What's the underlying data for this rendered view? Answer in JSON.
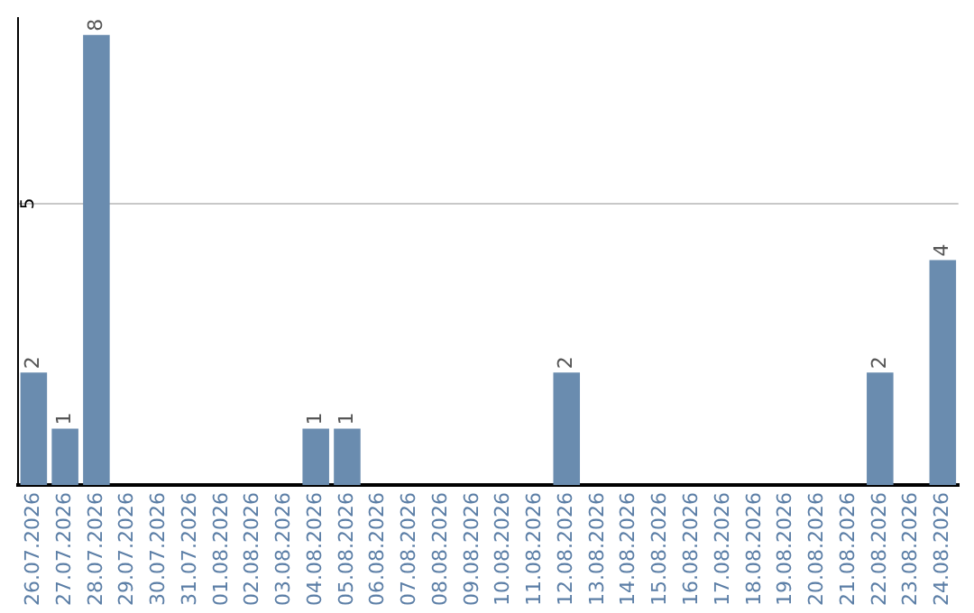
{
  "chart_data": {
    "type": "bar",
    "categories": [
      "26.07.2026",
      "27.07.2026",
      "28.07.2026",
      "29.07.2026",
      "30.07.2026",
      "31.07.2026",
      "01.08.2026",
      "02.08.2026",
      "03.08.2026",
      "04.08.2026",
      "05.08.2026",
      "06.08.2026",
      "07.08.2026",
      "08.08.2026",
      "09.08.2026",
      "10.08.2026",
      "11.08.2026",
      "12.08.2026",
      "13.08.2026",
      "14.08.2026",
      "15.08.2026",
      "16.08.2026",
      "17.08.2026",
      "18.08.2026",
      "19.08.2026",
      "20.08.2026",
      "21.08.2026",
      "22.08.2026",
      "23.08.2026",
      "24.08.2026"
    ],
    "values": [
      2,
      1,
      8,
      0,
      0,
      0,
      0,
      0,
      0,
      1,
      1,
      0,
      0,
      0,
      0,
      0,
      0,
      2,
      0,
      0,
      0,
      0,
      0,
      0,
      0,
      0,
      0,
      2,
      0,
      4
    ],
    "value_labels": [
      "2",
      "1",
      "8",
      null,
      null,
      null,
      null,
      null,
      null,
      "1",
      "1",
      null,
      null,
      null,
      null,
      null,
      null,
      "2",
      null,
      null,
      null,
      null,
      null,
      null,
      null,
      null,
      null,
      "2",
      null,
      "4"
    ],
    "color": "#6a8caf",
    "ylim": [
      0,
      8.3
    ],
    "yticks": [
      5
    ],
    "grid": "y",
    "legend": false
  }
}
